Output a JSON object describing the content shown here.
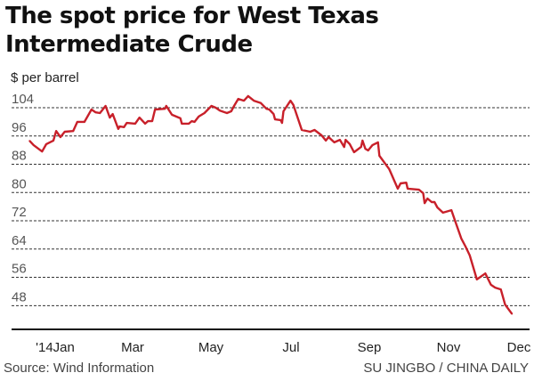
{
  "chart_data": {
    "type": "line",
    "title": "The spot price for West Texas Intermediate Crude",
    "ylabel": "$ per barrel",
    "xlabel": "",
    "ylim": [
      42,
      108
    ],
    "yticks": [
      104,
      96,
      88,
      80,
      72,
      64,
      56,
      48
    ],
    "xtick_labels": [
      "'14Jan",
      "Mar",
      "May",
      "Jul",
      "Sep",
      "Nov",
      "Dec"
    ],
    "grid": true,
    "line_color": "#c8202a",
    "series": [
      {
        "x": [
          "2014-01-01",
          "2014-01-04",
          "2014-01-10",
          "2014-01-13",
          "2014-01-18",
          "2014-01-20",
          "2014-01-23",
          "2014-01-26",
          "2014-02-01",
          "2014-02-04",
          "2014-02-09",
          "2014-02-14",
          "2014-02-17",
          "2014-02-20",
          "2014-02-24",
          "2014-02-27",
          "2014-03-01",
          "2014-03-05",
          "2014-03-06",
          "2014-03-09",
          "2014-03-11",
          "2014-03-17",
          "2014-03-20",
          "2014-03-24",
          "2014-03-26",
          "2014-03-29",
          "2014-03-31",
          "2014-04-07",
          "2014-04-08",
          "2014-04-12",
          "2014-04-18",
          "2014-04-19",
          "2014-04-24",
          "2014-04-26",
          "2014-04-28",
          "2014-05-01",
          "2014-05-05",
          "2014-05-10",
          "2014-05-13",
          "2014-05-16",
          "2014-05-21",
          "2014-05-24",
          "2014-05-26",
          "2014-05-29",
          "2014-06-02",
          "2014-06-05",
          "2014-06-09",
          "2014-06-14",
          "2014-06-18",
          "2014-06-20",
          "2014-06-23",
          "2014-06-24",
          "2014-06-28",
          "2014-06-29",
          "2014-06-30",
          "2014-07-05",
          "2014-07-07",
          "2014-07-13",
          "2014-07-19",
          "2014-07-22",
          "2014-07-27",
          "2014-07-30",
          "2014-08-01",
          "2014-08-05",
          "2014-08-09",
          "2014-08-12",
          "2014-08-13",
          "2014-08-16",
          "2014-08-19",
          "2014-08-24",
          "2014-08-25",
          "2014-08-27",
          "2014-08-29",
          "2014-09-01",
          "2014-09-05",
          "2014-09-06",
          "2014-09-13",
          "2014-09-19",
          "2014-09-21",
          "2014-09-25",
          "2014-09-26",
          "2014-10-04",
          "2014-10-07",
          "2014-10-08",
          "2014-10-10",
          "2014-10-13",
          "2014-10-15",
          "2014-10-17",
          "2014-10-21",
          "2014-10-27",
          "2014-10-30",
          "2014-11-03",
          "2014-11-06",
          "2014-11-09",
          "2014-11-14",
          "2014-11-20",
          "2014-11-24",
          "2014-11-27",
          "2014-12-01",
          "2014-12-04",
          "2014-12-09"
        ],
        "values": [
          94.7,
          93.4,
          91.6,
          93.7,
          94.7,
          97.4,
          95.7,
          97.2,
          97.4,
          100.0,
          100.0,
          103.5,
          102.7,
          102.5,
          104.5,
          101.2,
          102.2,
          98.0,
          98.7,
          98.5,
          99.7,
          99.5,
          101.2,
          99.5,
          100.2,
          100.2,
          103.5,
          103.7,
          104.5,
          102.0,
          101.0,
          99.5,
          99.5,
          100.2,
          100.0,
          101.5,
          102.5,
          104.5,
          104.0,
          103.2,
          102.5,
          103.0,
          104.5,
          106.5,
          106.0,
          107.3,
          106.0,
          105.3,
          103.7,
          103.5,
          102.2,
          100.7,
          100.5,
          99.7,
          103.0,
          106.0,
          104.8,
          97.7,
          97.2,
          97.7,
          96.2,
          94.7,
          95.7,
          94.2,
          94.9,
          92.9,
          94.9,
          93.7,
          91.4,
          92.9,
          94.7,
          92.4,
          91.9,
          93.4,
          94.2,
          90.4,
          86.6,
          81.1,
          82.6,
          82.8,
          81.1,
          80.8,
          79.8,
          77.0,
          78.3,
          77.3,
          77.3,
          75.8,
          74.3,
          75.0,
          71.5,
          67.0,
          64.7,
          62.2,
          55.4,
          57.1,
          53.9,
          53.1,
          52.6,
          48.3,
          45.6
        ]
      }
    ]
  },
  "footer": {
    "source": "Source: Wind  Information",
    "credit": "SU JINGBO / CHINA DAILY"
  }
}
